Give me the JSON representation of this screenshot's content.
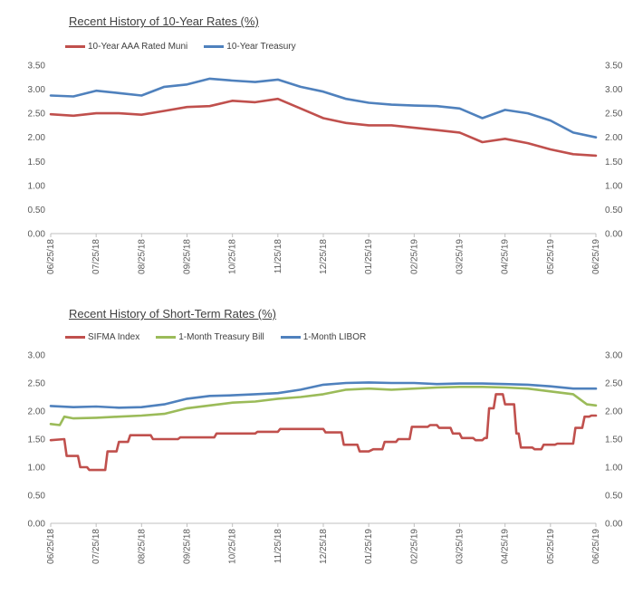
{
  "colors": {
    "muni": "#C0504D",
    "treasury": "#4F81BD",
    "sifma": "#C0504D",
    "tbill": "#9BBB59",
    "libor": "#4F81BD",
    "axis": "#BFBFBF"
  },
  "chart_data": [
    {
      "type": "line",
      "title": "Recent History of 10-Year Rates (%)",
      "x_labels": [
        "06/25/18",
        "07/25/18",
        "08/25/18",
        "09/25/18",
        "10/25/18",
        "11/25/18",
        "12/25/18",
        "01/25/19",
        "02/25/19",
        "03/25/19",
        "04/25/19",
        "05/25/19",
        "06/25/19"
      ],
      "y_ticks": [
        "0.00",
        "0.50",
        "1.00",
        "1.50",
        "2.00",
        "2.50",
        "3.00",
        "3.50"
      ],
      "ylim": [
        0,
        3.5
      ],
      "dual_y_axis": true,
      "legend_position": "top-left",
      "series": [
        {
          "name": "10-Year AAA Rated Muni",
          "color_key": "muni",
          "x": [
            0,
            0.5,
            1,
            1.5,
            2,
            2.5,
            3,
            3.5,
            4,
            4.5,
            5,
            5.5,
            6,
            6.5,
            7,
            7.5,
            8,
            8.5,
            9,
            9.5,
            10,
            10.5,
            11,
            11.5,
            12
          ],
          "values": [
            2.48,
            2.45,
            2.5,
            2.5,
            2.47,
            2.55,
            2.63,
            2.65,
            2.76,
            2.73,
            2.8,
            2.6,
            2.4,
            2.3,
            2.25,
            2.25,
            2.2,
            2.15,
            2.1,
            1.9,
            1.97,
            1.88,
            1.75,
            1.65,
            1.62
          ]
        },
        {
          "name": "10-Year Treasury",
          "color_key": "treasury",
          "x": [
            0,
            0.5,
            1,
            1.5,
            2,
            2.5,
            3,
            3.5,
            4,
            4.5,
            5,
            5.5,
            6,
            6.5,
            7,
            7.5,
            8,
            8.5,
            9,
            9.5,
            10,
            10.5,
            11,
            11.5,
            12
          ],
          "values": [
            2.87,
            2.85,
            2.97,
            2.92,
            2.87,
            3.05,
            3.1,
            3.22,
            3.18,
            3.15,
            3.2,
            3.05,
            2.95,
            2.8,
            2.72,
            2.68,
            2.66,
            2.65,
            2.6,
            2.4,
            2.57,
            2.5,
            2.35,
            2.1,
            2.0
          ]
        }
      ]
    },
    {
      "type": "line",
      "title": "Recent History of Short-Term  Rates (%)",
      "x_labels": [
        "06/25/18",
        "07/25/18",
        "08/25/18",
        "09/25/18",
        "10/25/18",
        "11/25/18",
        "12/25/18",
        "01/25/19",
        "02/25/19",
        "03/25/19",
        "04/25/19",
        "05/25/19",
        "06/25/19"
      ],
      "y_ticks": [
        "0.00",
        "0.50",
        "1.00",
        "1.50",
        "2.00",
        "2.50",
        "3.00"
      ],
      "ylim": [
        0,
        3.0
      ],
      "dual_y_axis": true,
      "legend_position": "top-left",
      "series": [
        {
          "name": "SIFMA Index",
          "color_key": "sifma",
          "x": [
            0,
            0.3,
            0.35,
            0.6,
            0.65,
            0.8,
            0.85,
            1.2,
            1.25,
            1.45,
            1.5,
            1.7,
            1.75,
            2.2,
            2.25,
            2.8,
            2.85,
            3.6,
            3.65,
            4.5,
            4.55,
            5,
            5.05,
            6.0,
            6.05,
            6.4,
            6.45,
            6.75,
            6.8,
            7.0,
            7.1,
            7.3,
            7.35,
            7.6,
            7.65,
            7.9,
            7.95,
            8.3,
            8.35,
            8.5,
            8.55,
            8.8,
            8.85,
            9.0,
            9.05,
            9.3,
            9.35,
            9.5,
            9.55,
            9.6,
            9.65,
            9.75,
            9.8,
            9.95,
            10,
            10.2,
            10.25,
            10.3,
            10.35,
            10.6,
            10.65,
            10.8,
            10.85,
            11.1,
            11.15,
            11.5,
            11.55,
            11.7,
            11.75,
            11.85,
            11.9,
            12
          ],
          "values": [
            1.48,
            1.5,
            1.2,
            1.2,
            1.0,
            1.0,
            0.95,
            0.95,
            1.28,
            1.28,
            1.45,
            1.45,
            1.57,
            1.57,
            1.5,
            1.5,
            1.53,
            1.53,
            1.6,
            1.6,
            1.63,
            1.63,
            1.68,
            1.68,
            1.62,
            1.62,
            1.4,
            1.4,
            1.28,
            1.28,
            1.32,
            1.32,
            1.45,
            1.45,
            1.5,
            1.5,
            1.72,
            1.72,
            1.75,
            1.75,
            1.7,
            1.7,
            1.6,
            1.6,
            1.52,
            1.52,
            1.48,
            1.48,
            1.52,
            1.52,
            2.05,
            2.05,
            2.3,
            2.3,
            2.12,
            2.12,
            1.6,
            1.6,
            1.35,
            1.35,
            1.32,
            1.32,
            1.4,
            1.4,
            1.42,
            1.42,
            1.7,
            1.7,
            1.9,
            1.9,
            1.92,
            1.92
          ]
        },
        {
          "name": "1-Month Treasury Bill",
          "color_key": "tbill",
          "x": [
            0,
            0.2,
            0.3,
            0.5,
            1,
            1.5,
            2,
            2.5,
            3,
            3.5,
            4,
            4.5,
            5,
            5.5,
            6,
            6.5,
            7,
            7.5,
            8,
            8.5,
            9,
            9.5,
            10,
            10.5,
            11,
            11.5,
            11.8,
            12
          ],
          "values": [
            1.77,
            1.75,
            1.9,
            1.87,
            1.88,
            1.9,
            1.92,
            1.95,
            2.05,
            2.1,
            2.15,
            2.17,
            2.22,
            2.25,
            2.3,
            2.38,
            2.4,
            2.38,
            2.4,
            2.42,
            2.43,
            2.43,
            2.42,
            2.4,
            2.35,
            2.3,
            2.12,
            2.1
          ]
        },
        {
          "name": "1-Month LIBOR",
          "color_key": "libor",
          "x": [
            0,
            0.5,
            1,
            1.5,
            2,
            2.5,
            3,
            3.5,
            4,
            4.5,
            5,
            5.5,
            6,
            6.5,
            7,
            7.5,
            8,
            8.5,
            9,
            9.5,
            10,
            10.5,
            11,
            11.5,
            12
          ],
          "values": [
            2.09,
            2.07,
            2.08,
            2.06,
            2.07,
            2.12,
            2.22,
            2.27,
            2.28,
            2.3,
            2.32,
            2.38,
            2.47,
            2.5,
            2.51,
            2.5,
            2.5,
            2.48,
            2.49,
            2.49,
            2.48,
            2.47,
            2.44,
            2.4,
            2.4
          ]
        }
      ]
    }
  ]
}
